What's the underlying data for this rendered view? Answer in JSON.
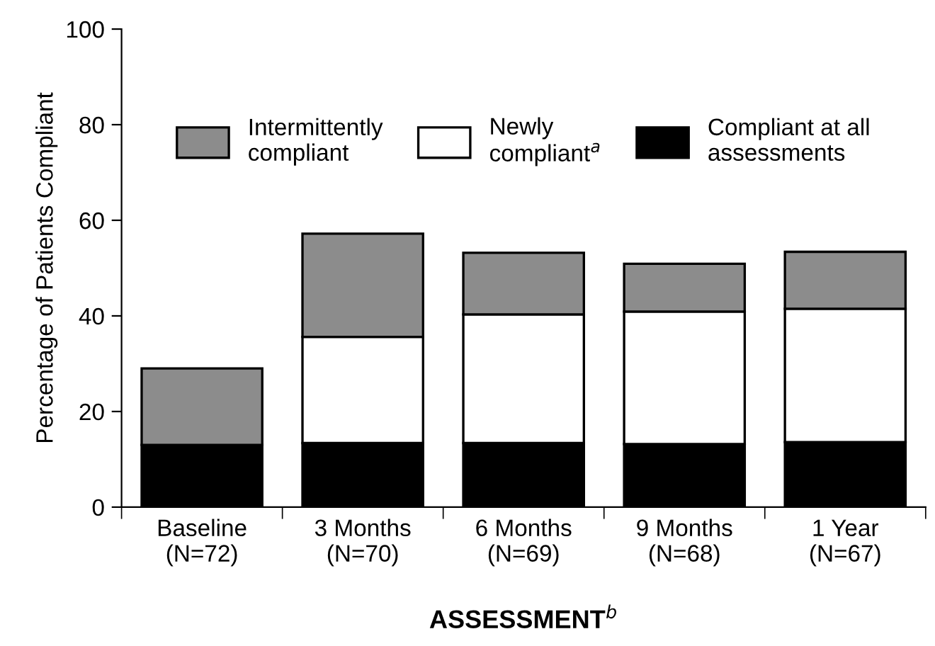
{
  "chart_data": {
    "type": "bar",
    "stacked": true,
    "ylabel": "Percentage of Patients Compliant",
    "xlabel": "ASSESSMENT$^{b}$",
    "categories": [
      "Baseline\n(N=72)",
      "3 Months\n(N=70)",
      "6 Months\n(N=69)",
      "9 Months\n(N=68)",
      "1 Year\n(N=67)"
    ],
    "series": [
      {
        "name": "Compliant at all\nassessments",
        "color": "#000000",
        "values": [
          13,
          13.4,
          13.4,
          13.2,
          13.6
        ]
      },
      {
        "name": "Newly\ncompliant$^{a}$",
        "color": "#ffffff",
        "values": [
          0,
          22.2,
          26.9,
          27.7,
          27.9
        ]
      },
      {
        "name": "Intermittently\ncompliant",
        "color": "#8c8c8c",
        "values": [
          16,
          21.6,
          12.9,
          10.0,
          11.9
        ]
      }
    ],
    "ylim": [
      0,
      100
    ],
    "yticks": [
      0,
      20,
      40,
      60,
      80,
      100
    ],
    "grid": false,
    "legend": "top"
  }
}
